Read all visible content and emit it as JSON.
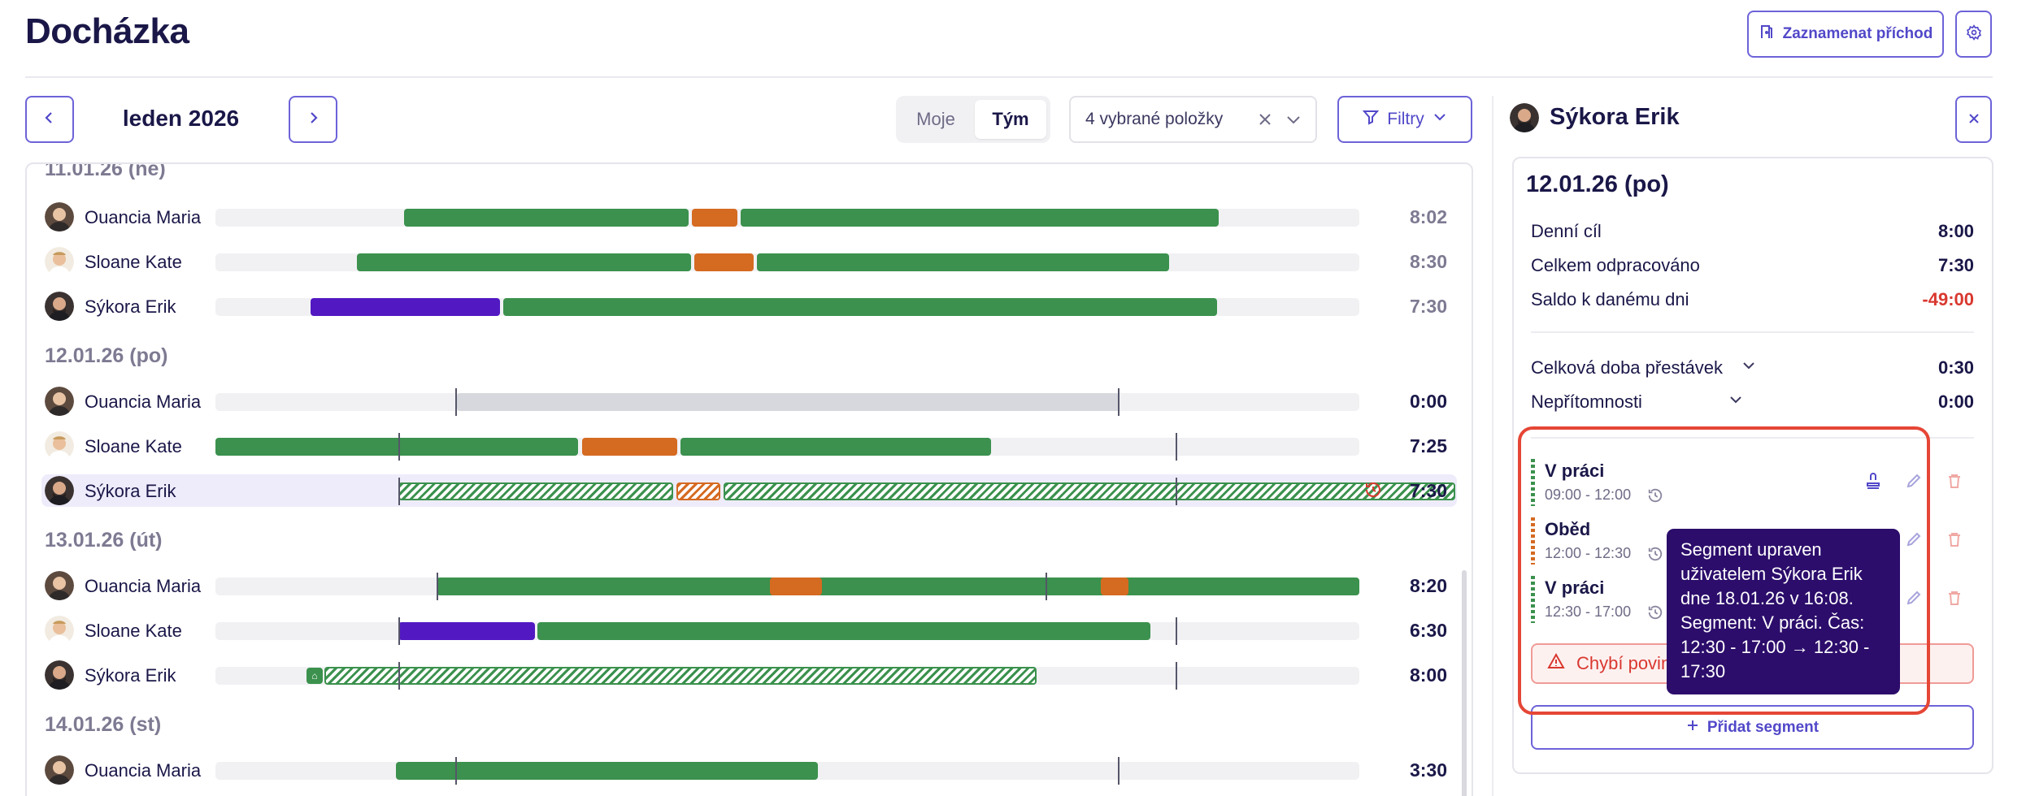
{
  "header": {
    "title": "Docházka",
    "record_button_label": "Zaznamenat příchod",
    "settings_icon": "gear-icon"
  },
  "toolbar": {
    "month_label": "leden 2026",
    "toggle": {
      "options": [
        "Moje",
        "Tým"
      ],
      "selected": "Tým"
    },
    "select_value": "4 vybrané položky",
    "filter_label": "Filtry"
  },
  "timeline": {
    "days": [
      {
        "label": "11.01.26 (ne)",
        "rows": [
          {
            "name": "Ouancia Maria",
            "total": "8:02"
          },
          {
            "name": "Sloane Kate",
            "total": "8:30"
          },
          {
            "name": "Sýkora Erik",
            "total": "7:30"
          }
        ]
      },
      {
        "label": "12.01.26 (po)",
        "rows": [
          {
            "name": "Ouancia Maria",
            "total": "0:00"
          },
          {
            "name": "Sloane Kate",
            "total": "7:25"
          },
          {
            "name": "Sýkora Erik",
            "total": "7:30"
          }
        ]
      },
      {
        "label": "13.01.26 (út)",
        "rows": [
          {
            "name": "Ouancia Maria",
            "total": "8:20"
          },
          {
            "name": "Sloane Kate",
            "total": "6:30"
          },
          {
            "name": "Sýkora Erik",
            "total": "8:00"
          }
        ]
      },
      {
        "label": "14.01.26 (st)",
        "rows": [
          {
            "name": "Ouancia Maria",
            "total": "3:30"
          }
        ]
      }
    ]
  },
  "detail": {
    "person_name": "Sýkora Erik",
    "date": "12.01.26 (po)",
    "stats": [
      {
        "label": "Denní cíl",
        "value": "8:00"
      },
      {
        "label": "Celkem odpracováno",
        "value": "7:30"
      },
      {
        "label": "Saldo k danému dni",
        "value": "-49:00"
      }
    ],
    "expandables": [
      {
        "label": "Celková doba přestávek",
        "value": "0:30"
      },
      {
        "label": "Nepřítomnosti",
        "value": "0:00"
      }
    ],
    "segments": [
      {
        "title": "V práci",
        "time": "09:00 - 12:00",
        "color": "#3b914d"
      },
      {
        "title": "Oběd",
        "time": "12:00 - 12:30",
        "color": "#d56a21"
      },
      {
        "title": "V práci",
        "time": "12:30 - 17:00",
        "color": "#3b914d"
      }
    ],
    "warning_text": "Chybí povin",
    "add_segment_label": "Přidat segment",
    "tooltip_text": "Segment upraven uživatelem Sýkora Erik dne 18.01.26 v 16:08. Segment: V práci. Čas: 12:30 - 17:00 → 12:30 - 17:30"
  },
  "colors": {
    "accent": "#5148c9",
    "work": "#3b914d",
    "break": "#d56a21",
    "absence": "#5219c2",
    "negative": "#d9382f",
    "tooltip": "#2c0d6b"
  }
}
